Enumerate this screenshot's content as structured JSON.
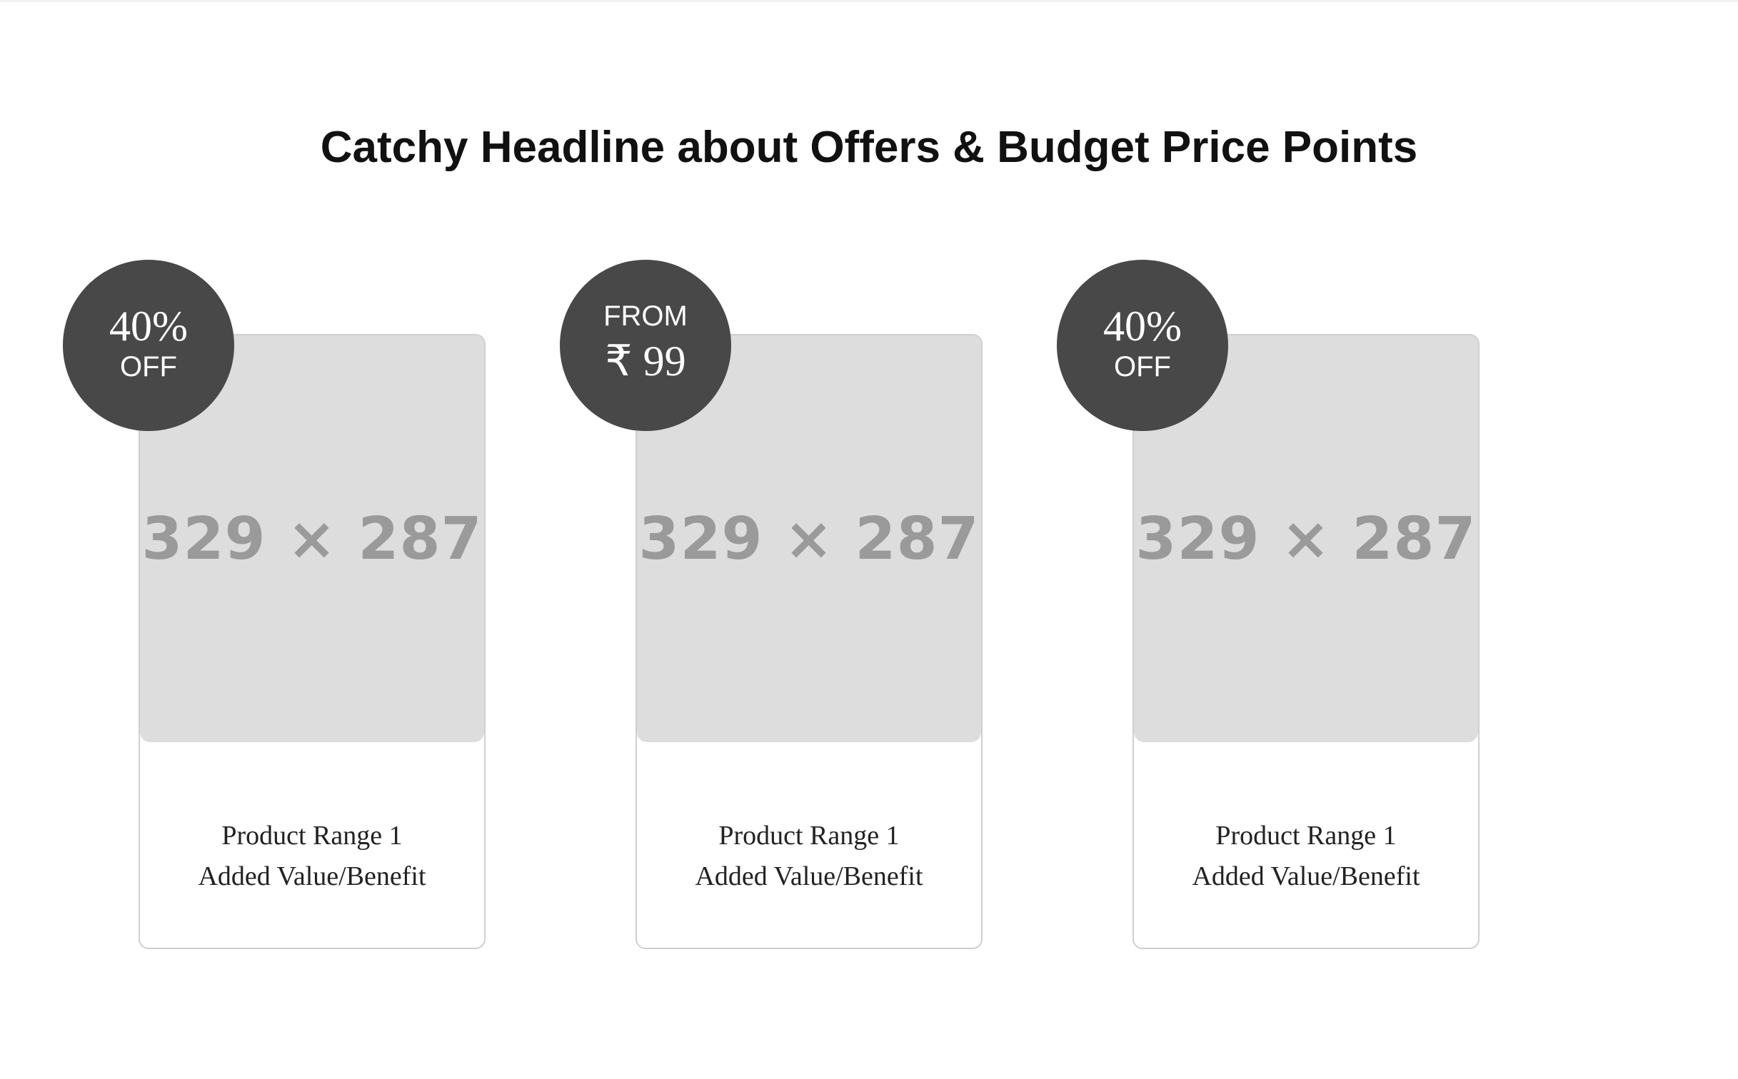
{
  "headline": "Catchy Headline about Offers & Budget Price Points",
  "colors": {
    "badge_background": "#484848",
    "image_placeholder": "#dddddd",
    "card_border": "#cfcfcf"
  },
  "cards": [
    {
      "badge": {
        "line1": "40%",
        "line2": "OFF"
      },
      "image_label": "329 × 287",
      "title": "Product Range 1",
      "subtitle": "Added Value/Benefit"
    },
    {
      "badge": {
        "line1": "FROM",
        "line2": "₹ 99"
      },
      "image_label": "329 × 287",
      "title": "Product Range 1",
      "subtitle": "Added Value/Benefit"
    },
    {
      "badge": {
        "line1": "40%",
        "line2": "OFF"
      },
      "image_label": "329 × 287",
      "title": "Product Range 1",
      "subtitle": "Added Value/Benefit"
    }
  ]
}
